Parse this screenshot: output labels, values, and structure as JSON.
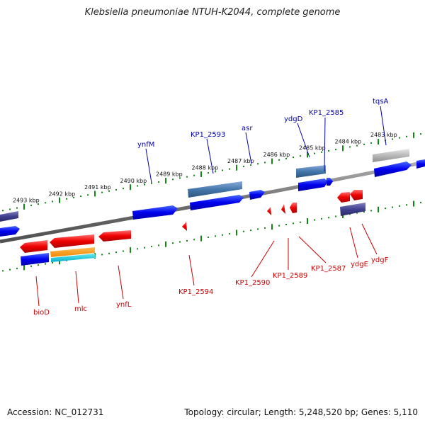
{
  "title": "Klebsiella pneumoniae NTUH-K2044, complete genome",
  "footer": {
    "accession": "Accession: NC_012731",
    "topology": "Topology: circular; Length: 5,248,520 bp; Genes: 5,110"
  },
  "scale": {
    "labels": [
      "2483 kbp",
      "2484 kbp",
      "2485 kbp",
      "2486 kbp",
      "2487 kbp",
      "2488 kbp",
      "2489 kbp",
      "2490 kbp",
      "2491 kbp",
      "2492 kbp",
      "2493 kbp"
    ]
  },
  "colors": {
    "forward_gene": "#0000ee",
    "reverse_gene": "#ee0000",
    "backbone": "#808080",
    "tick": "#118811",
    "forward_label": "#0000aa",
    "reverse_label": "#cc0000"
  },
  "genes_forward_labels": [
    "tqsA",
    "KP1_2585",
    "ydgD",
    "asr",
    "KP1_2593",
    "ynfM"
  ],
  "genes_reverse_labels": [
    "ydgF",
    "ydgE",
    "KP1_2587",
    "KP1_2589",
    "KP1_2590",
    "KP1_2594",
    "ynfL",
    "mlc",
    "bioD"
  ]
}
